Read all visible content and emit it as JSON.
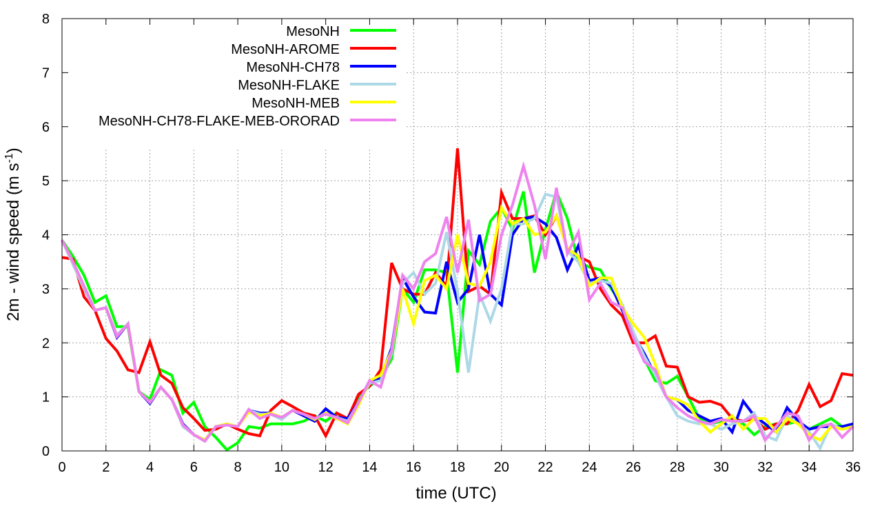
{
  "chart_data": {
    "type": "line",
    "title": "",
    "xlabel": "time (UTC)",
    "ylabel": {
      "main": "2m - wind speed  (m s",
      "sup": "-1",
      "end": ")"
    },
    "xlim": [
      0,
      36
    ],
    "ylim": [
      0,
      8
    ],
    "xticks": [
      0,
      2,
      4,
      6,
      8,
      10,
      12,
      14,
      16,
      18,
      20,
      22,
      24,
      26,
      28,
      30,
      32,
      34,
      36
    ],
    "yticks": [
      0,
      1,
      2,
      3,
      4,
      5,
      6,
      7,
      8
    ],
    "grid": true,
    "legend_position": "top-left",
    "x_step": 0.5,
    "series": [
      {
        "name": "MesoNH",
        "color": "#00ff00",
        "values": [
          3.9,
          3.6,
          3.25,
          2.75,
          2.87,
          2.3,
          2.3,
          1.1,
          0.95,
          1.5,
          1.4,
          0.7,
          0.9,
          0.45,
          0.25,
          0.02,
          0.15,
          0.45,
          0.42,
          0.5,
          0.5,
          0.5,
          0.55,
          0.65,
          0.55,
          0.7,
          0.55,
          1.0,
          1.2,
          1.35,
          1.7,
          3.0,
          2.75,
          3.35,
          3.35,
          3.3,
          1.45,
          3.7,
          3.45,
          4.25,
          4.5,
          4.1,
          4.8,
          3.3,
          4.1,
          4.8,
          4.3,
          3.5,
          3.4,
          3.35,
          3.0,
          2.7,
          2.2,
          1.7,
          1.3,
          1.25,
          1.38,
          1.0,
          0.6,
          0.5,
          0.55,
          0.6,
          0.5,
          0.3,
          0.45,
          0.5,
          0.5,
          0.55,
          0.4,
          0.5,
          0.6,
          0.45,
          0.45
        ]
      },
      {
        "name": "MesoNH-AROME",
        "color": "#ff0000",
        "values": [
          3.58,
          3.55,
          2.85,
          2.6,
          2.08,
          1.85,
          1.5,
          1.45,
          2.02,
          1.4,
          1.25,
          0.8,
          0.6,
          0.38,
          0.4,
          0.5,
          0.4,
          0.32,
          0.28,
          0.75,
          0.93,
          0.82,
          0.7,
          0.65,
          0.28,
          0.7,
          0.6,
          1.05,
          1.2,
          1.5,
          3.48,
          3.0,
          2.9,
          2.9,
          3.3,
          3.05,
          5.6,
          2.95,
          3.05,
          2.9,
          4.78,
          4.3,
          4.3,
          4.35,
          4.0,
          4.35,
          3.75,
          3.6,
          3.5,
          3.0,
          2.7,
          2.5,
          2.0,
          2.0,
          2.13,
          1.57,
          1.55,
          1.0,
          0.9,
          0.92,
          0.85,
          0.6,
          0.55,
          0.6,
          0.4,
          0.5,
          0.5,
          0.75,
          1.23,
          0.82,
          0.93,
          1.43,
          1.4
        ]
      },
      {
        "name": "MesoNH-CH78",
        "color": "#0000ff",
        "values": [
          3.9,
          3.5,
          3.05,
          2.6,
          2.65,
          2.1,
          2.35,
          1.1,
          0.88,
          1.18,
          0.95,
          0.5,
          0.3,
          0.2,
          0.45,
          0.48,
          0.45,
          0.75,
          0.7,
          0.7,
          0.6,
          0.75,
          0.65,
          0.55,
          0.78,
          0.62,
          0.6,
          0.9,
          1.3,
          1.35,
          1.9,
          3.2,
          2.85,
          2.57,
          2.55,
          3.5,
          2.75,
          3.0,
          4.0,
          2.9,
          2.7,
          4.0,
          4.3,
          4.33,
          4.2,
          3.95,
          3.35,
          3.8,
          3.15,
          3.2,
          3.05,
          2.6,
          2.15,
          1.8,
          1.4,
          1.0,
          0.95,
          0.75,
          0.65,
          0.55,
          0.6,
          0.35,
          0.92,
          0.65,
          0.5,
          0.35,
          0.8,
          0.55,
          0.4,
          0.45,
          0.45,
          0.45,
          0.5
        ]
      },
      {
        "name": "MesoNH-FLAKE",
        "color": "#add8e6",
        "values": [
          3.9,
          3.45,
          3.0,
          2.6,
          2.65,
          2.15,
          2.35,
          1.1,
          0.9,
          1.18,
          0.95,
          0.45,
          0.3,
          0.18,
          0.45,
          0.5,
          0.45,
          0.75,
          0.68,
          0.68,
          0.58,
          0.75,
          0.68,
          0.6,
          0.68,
          0.62,
          0.55,
          0.9,
          1.25,
          1.3,
          1.8,
          3.1,
          3.3,
          2.9,
          3.1,
          4.05,
          2.95,
          1.45,
          2.9,
          2.4,
          3.0,
          4.2,
          4.2,
          4.3,
          4.75,
          4.7,
          3.7,
          3.5,
          3.1,
          3.15,
          3.1,
          2.7,
          2.2,
          1.75,
          1.4,
          1.0,
          0.65,
          0.55,
          0.5,
          0.5,
          0.4,
          0.5,
          0.55,
          0.7,
          0.28,
          0.2,
          0.65,
          0.5,
          0.35,
          0.05,
          0.5,
          0.4,
          0.45
        ]
      },
      {
        "name": "MesoNH-MEB",
        "color": "#ffff00",
        "values": [
          3.9,
          3.5,
          3.05,
          2.6,
          2.65,
          2.12,
          2.35,
          1.1,
          0.9,
          1.18,
          0.95,
          0.48,
          0.3,
          0.2,
          0.45,
          0.5,
          0.45,
          0.72,
          0.65,
          0.7,
          0.62,
          0.75,
          0.68,
          0.58,
          0.7,
          0.6,
          0.5,
          0.85,
          1.3,
          1.4,
          1.85,
          3.0,
          2.35,
          3.15,
          3.25,
          3.0,
          4.0,
          3.1,
          3.05,
          3.5,
          4.5,
          4.2,
          4.3,
          4.0,
          4.05,
          4.35,
          3.75,
          3.6,
          3.05,
          3.2,
          3.2,
          2.65,
          2.35,
          2.1,
          1.6,
          1.0,
          0.95,
          0.85,
          0.55,
          0.35,
          0.5,
          0.65,
          0.4,
          0.6,
          0.6,
          0.35,
          0.6,
          0.5,
          0.3,
          0.2,
          0.45,
          0.4,
          0.45
        ]
      },
      {
        "name": "MesoNH-CH78-FLAKE-MEB-ORORAD",
        "color": "#ee82ee",
        "values": [
          3.9,
          3.5,
          3.05,
          2.6,
          2.65,
          2.12,
          2.35,
          1.1,
          0.9,
          1.18,
          0.95,
          0.48,
          0.3,
          0.18,
          0.45,
          0.48,
          0.45,
          0.77,
          0.6,
          0.68,
          0.62,
          0.75,
          0.68,
          0.6,
          0.68,
          0.62,
          0.52,
          0.9,
          1.3,
          1.18,
          1.85,
          3.25,
          3.0,
          3.5,
          3.65,
          4.33,
          3.3,
          4.28,
          2.78,
          2.9,
          4.0,
          4.55,
          5.27,
          4.55,
          3.55,
          4.87,
          3.65,
          4.05,
          2.8,
          3.1,
          2.75,
          2.65,
          2.1,
          1.65,
          1.5,
          1.0,
          0.8,
          0.65,
          0.55,
          0.5,
          0.58,
          0.55,
          0.55,
          0.65,
          0.2,
          0.45,
          0.7,
          0.65,
          0.2,
          0.45,
          0.5,
          0.25,
          0.45
        ]
      }
    ]
  }
}
